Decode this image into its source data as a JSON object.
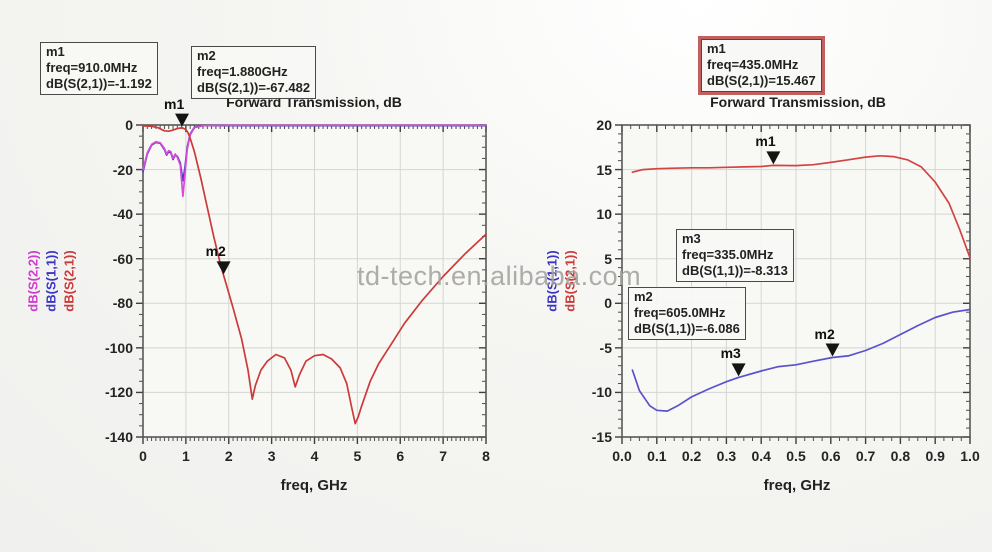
{
  "watermark": "td-tech.en.alibaba.com",
  "chart_data": [
    {
      "type": "line",
      "title": "Forward Transmission, dB",
      "xlabel": "freq, GHz",
      "x_range": [
        0,
        8
      ],
      "y_range": [
        -140,
        0
      ],
      "x_minor_step": 0.1,
      "y_minor_step": 5,
      "grid": true,
      "x_ticks": [
        {
          "v": 0,
          "label": "0"
        },
        {
          "v": 1,
          "label": "1"
        },
        {
          "v": 2,
          "label": "2"
        },
        {
          "v": 3,
          "label": "3"
        },
        {
          "v": 4,
          "label": "4"
        },
        {
          "v": 5,
          "label": "5"
        },
        {
          "v": 6,
          "label": "6"
        },
        {
          "v": 7,
          "label": "7"
        },
        {
          "v": 8,
          "label": "8"
        }
      ],
      "y_ticks": [
        {
          "v": 0,
          "label": "0"
        },
        {
          "v": -20,
          "label": "-20"
        },
        {
          "v": -40,
          "label": "-40"
        },
        {
          "v": -60,
          "label": "-60"
        },
        {
          "v": -80,
          "label": "-80"
        },
        {
          "v": -100,
          "label": "-100"
        },
        {
          "v": -120,
          "label": "-120"
        },
        {
          "v": -140,
          "label": "-140"
        }
      ],
      "ylabels": [
        {
          "text": "dB(S(2,2))",
          "color": "#cf3bcf"
        },
        {
          "text": "dB(S(1,1))",
          "color": "#3c35c4"
        },
        {
          "text": "dB(S(2,1))",
          "color": "#cc3a3a"
        }
      ],
      "series": [
        {
          "name": "dB(S(1,1))",
          "color": "#453cc6",
          "points": [
            [
              0,
              -21
            ],
            [
              0.1,
              -13
            ],
            [
              0.2,
              -9
            ],
            [
              0.3,
              -7.8
            ],
            [
              0.4,
              -8.2
            ],
            [
              0.5,
              -11
            ],
            [
              0.55,
              -13.5
            ],
            [
              0.6,
              -12
            ],
            [
              0.65,
              -12.5
            ],
            [
              0.7,
              -15.5
            ],
            [
              0.75,
              -13.5
            ],
            [
              0.8,
              -14
            ],
            [
              0.87,
              -17
            ],
            [
              0.93,
              -25
            ],
            [
              0.98,
              -19
            ],
            [
              1.03,
              -10
            ],
            [
              1.1,
              -4
            ],
            [
              1.2,
              -1
            ],
            [
              1.4,
              -0.3
            ],
            [
              2,
              -0.25
            ],
            [
              8,
              -0.25
            ]
          ]
        },
        {
          "name": "dB(S(2,2))",
          "color": "#d84ad8",
          "points": [
            [
              0,
              -20
            ],
            [
              0.1,
              -12.5
            ],
            [
              0.2,
              -8.7
            ],
            [
              0.3,
              -7.5
            ],
            [
              0.4,
              -8
            ],
            [
              0.5,
              -10.5
            ],
            [
              0.55,
              -13
            ],
            [
              0.6,
              -11.5
            ],
            [
              0.65,
              -12
            ],
            [
              0.7,
              -15
            ],
            [
              0.75,
              -13
            ],
            [
              0.8,
              -14.5
            ],
            [
              0.87,
              -18
            ],
            [
              0.93,
              -32
            ],
            [
              0.98,
              -22
            ],
            [
              1.03,
              -11
            ],
            [
              1.1,
              -4.5
            ],
            [
              1.2,
              -1.2
            ],
            [
              1.4,
              -0.3
            ],
            [
              2,
              -0.15
            ],
            [
              8,
              -0.15
            ]
          ]
        },
        {
          "name": "dB(S(2,1))",
          "color": "#cc3a3a",
          "points": [
            [
              0,
              -0.4
            ],
            [
              0.2,
              -0.6
            ],
            [
              0.35,
              -1.2
            ],
            [
              0.5,
              -2.6
            ],
            [
              0.6,
              -2.8
            ],
            [
              0.7,
              -2.3
            ],
            [
              0.8,
              -1.6
            ],
            [
              0.91,
              -1.19
            ],
            [
              1.0,
              -2.0
            ],
            [
              1.05,
              -3.5
            ],
            [
              1.1,
              -6
            ],
            [
              1.2,
              -12
            ],
            [
              1.35,
              -24
            ],
            [
              1.5,
              -37
            ],
            [
              1.65,
              -50
            ],
            [
              1.8,
              -62
            ],
            [
              1.88,
              -67.5
            ],
            [
              1.95,
              -72
            ],
            [
              2.1,
              -82
            ],
            [
              2.3,
              -96
            ],
            [
              2.45,
              -110
            ],
            [
              2.55,
              -123
            ],
            [
              2.62,
              -117
            ],
            [
              2.75,
              -110
            ],
            [
              2.9,
              -106
            ],
            [
              3.1,
              -103
            ],
            [
              3.3,
              -104.5
            ],
            [
              3.45,
              -110
            ],
            [
              3.55,
              -117.5
            ],
            [
              3.65,
              -112
            ],
            [
              3.8,
              -106
            ],
            [
              4.0,
              -103.5
            ],
            [
              4.2,
              -103
            ],
            [
              4.4,
              -105
            ],
            [
              4.6,
              -109
            ],
            [
              4.75,
              -116
            ],
            [
              4.87,
              -127
            ],
            [
              4.95,
              -134
            ],
            [
              5.02,
              -131
            ],
            [
              5.1,
              -126
            ],
            [
              5.3,
              -115
            ],
            [
              5.5,
              -107
            ],
            [
              5.8,
              -98
            ],
            [
              6.1,
              -89
            ],
            [
              6.5,
              -79
            ],
            [
              7.0,
              -68
            ],
            [
              7.5,
              -58
            ],
            [
              8.0,
              -49
            ]
          ]
        }
      ],
      "markers": [
        {
          "label": "m1",
          "x": 0.91,
          "y": -1.192
        },
        {
          "label": "m2",
          "x": 1.88,
          "y": -67.482
        }
      ],
      "marker_boxes": [
        {
          "lines": [
            "m1",
            "freq=910.0MHz",
            "dB(S(2,1))=-1.192"
          ],
          "selected": false
        },
        {
          "lines": [
            "m2",
            "freq=1.880GHz",
            "dB(S(2,1))=-67.482"
          ],
          "selected": false
        }
      ]
    },
    {
      "type": "line",
      "title": "Forward Transmission, dB",
      "xlabel": "freq, GHz",
      "x_range": [
        0,
        1
      ],
      "y_range": [
        -15,
        20
      ],
      "x_minor_step": 0.025,
      "y_minor_step": 1,
      "grid": true,
      "x_ticks": [
        {
          "v": 0,
          "label": "0.0"
        },
        {
          "v": 0.1,
          "label": "0.1"
        },
        {
          "v": 0.2,
          "label": "0.2"
        },
        {
          "v": 0.3,
          "label": "0.3"
        },
        {
          "v": 0.4,
          "label": "0.4"
        },
        {
          "v": 0.5,
          "label": "0.5"
        },
        {
          "v": 0.6,
          "label": "0.6"
        },
        {
          "v": 0.7,
          "label": "0.7"
        },
        {
          "v": 0.8,
          "label": "0.8"
        },
        {
          "v": 0.9,
          "label": "0.9"
        },
        {
          "v": 1.0,
          "label": "1.0"
        }
      ],
      "y_ticks": [
        {
          "v": 20,
          "label": "20"
        },
        {
          "v": 15,
          "label": "15"
        },
        {
          "v": 10,
          "label": "10"
        },
        {
          "v": 5,
          "label": "5"
        },
        {
          "v": 0,
          "label": "0"
        },
        {
          "v": -5,
          "label": "-5"
        },
        {
          "v": -10,
          "label": "-10"
        },
        {
          "v": -15,
          "label": "-15"
        }
      ],
      "ylabels": [
        {
          "text": "dB(S(1,1))",
          "color": "#3c35c4"
        },
        {
          "text": "dB(S(2,1))",
          "color": "#cc3a3a"
        }
      ],
      "series": [
        {
          "name": "dB(S(1,1))",
          "color": "#5a52cc",
          "points": [
            [
              0.03,
              -7.5
            ],
            [
              0.05,
              -9.8
            ],
            [
              0.08,
              -11.5
            ],
            [
              0.1,
              -12
            ],
            [
              0.13,
              -12.1
            ],
            [
              0.16,
              -11.5
            ],
            [
              0.2,
              -10.5
            ],
            [
              0.25,
              -9.6
            ],
            [
              0.3,
              -8.8
            ],
            [
              0.335,
              -8.313
            ],
            [
              0.4,
              -7.6
            ],
            [
              0.45,
              -7.1
            ],
            [
              0.5,
              -6.9
            ],
            [
              0.55,
              -6.5
            ],
            [
              0.605,
              -6.086
            ],
            [
              0.65,
              -5.9
            ],
            [
              0.7,
              -5.3
            ],
            [
              0.75,
              -4.5
            ],
            [
              0.8,
              -3.5
            ],
            [
              0.85,
              -2.5
            ],
            [
              0.9,
              -1.6
            ],
            [
              0.95,
              -1.0
            ],
            [
              1.0,
              -0.7
            ]
          ]
        },
        {
          "name": "dB(S(2,1))",
          "color": "#d24444",
          "points": [
            [
              0.03,
              14.7
            ],
            [
              0.06,
              15.0
            ],
            [
              0.1,
              15.1
            ],
            [
              0.15,
              15.15
            ],
            [
              0.2,
              15.2
            ],
            [
              0.25,
              15.2
            ],
            [
              0.3,
              15.25
            ],
            [
              0.35,
              15.3
            ],
            [
              0.4,
              15.35
            ],
            [
              0.435,
              15.467
            ],
            [
              0.5,
              15.45
            ],
            [
              0.55,
              15.55
            ],
            [
              0.6,
              15.8
            ],
            [
              0.65,
              16.1
            ],
            [
              0.7,
              16.4
            ],
            [
              0.74,
              16.55
            ],
            [
              0.78,
              16.45
            ],
            [
              0.82,
              16.1
            ],
            [
              0.86,
              15.3
            ],
            [
              0.9,
              13.6
            ],
            [
              0.94,
              11.2
            ],
            [
              0.97,
              8.3
            ],
            [
              1.0,
              5.1
            ]
          ]
        }
      ],
      "markers": [
        {
          "label": "m1",
          "x": 0.435,
          "y": 15.467
        },
        {
          "label": "m3",
          "x": 0.335,
          "y": -8.313
        },
        {
          "label": "m2",
          "x": 0.605,
          "y": -6.086
        }
      ],
      "marker_boxes": [
        {
          "lines": [
            "m1",
            "freq=435.0MHz",
            "dB(S(2,1))=15.467"
          ],
          "selected": true
        },
        {
          "lines": [
            "m3",
            "freq=335.0MHz",
            "dB(S(1,1))=-8.313"
          ],
          "selected": false
        },
        {
          "lines": [
            "m2",
            "freq=605.0MHz",
            "dB(S(1,1))=-6.086"
          ],
          "selected": false
        }
      ]
    }
  ]
}
